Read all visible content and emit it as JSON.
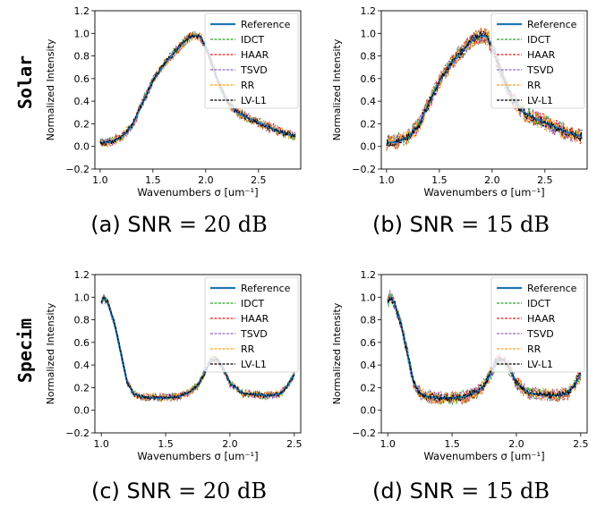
{
  "row_labels": [
    "Solar",
    "Specim"
  ],
  "captions": [
    {
      "prefix": "(a) SNR",
      "eq": "=",
      "value": "20 dB"
    },
    {
      "prefix": "(b) SNR",
      "eq": "=",
      "value": "15 dB"
    },
    {
      "prefix": "(c) SNR",
      "eq": "=",
      "value": "20 dB"
    },
    {
      "prefix": "(d) SNR",
      "eq": "=",
      "value": "15 dB"
    }
  ],
  "chart_data": [
    {
      "type": "line",
      "panel": "a",
      "dataset": "Solar",
      "noise": 0.045,
      "xlabel": "Wavenumbers σ [um⁻¹]",
      "ylabel": "Normalized Intensity",
      "xlim": [
        0.95,
        2.9
      ],
      "ylim": [
        -0.2,
        1.2
      ],
      "xticks": [
        "1.0",
        "1.5",
        "2.0",
        "2.5"
      ],
      "yticks": [
        "−0.2",
        "0.0",
        "0.2",
        "0.4",
        "0.6",
        "0.8",
        "1.0",
        "1.2"
      ],
      "legend": "upper-right",
      "reference_points": {
        "x": [
          1.0,
          1.1,
          1.2,
          1.3,
          1.4,
          1.5,
          1.6,
          1.7,
          1.8,
          1.85,
          1.9,
          1.95,
          2.0,
          2.1,
          2.2,
          2.3,
          2.4,
          2.5,
          2.6,
          2.7,
          2.8,
          2.85
        ],
        "y": [
          0.03,
          0.04,
          0.08,
          0.18,
          0.38,
          0.58,
          0.72,
          0.83,
          0.93,
          0.97,
          0.98,
          0.97,
          0.88,
          0.62,
          0.4,
          0.3,
          0.25,
          0.21,
          0.17,
          0.13,
          0.1,
          0.09
        ]
      },
      "series": [
        {
          "name": "Reference",
          "color": "#1f77b4",
          "style": "solid"
        },
        {
          "name": "IDCT",
          "color": "#2ca02c",
          "style": "dashed"
        },
        {
          "name": "HAAR",
          "color": "#d62728",
          "style": "dashed"
        },
        {
          "name": "TSVD",
          "color": "#9467bd",
          "style": "dashed"
        },
        {
          "name": "RR",
          "color": "#ff9f1c",
          "style": "dashed"
        },
        {
          "name": "LV-L1",
          "color": "#000000",
          "style": "dashed"
        }
      ]
    },
    {
      "type": "line",
      "panel": "b",
      "dataset": "Solar",
      "noise": 0.075,
      "xlabel": "Wavenumbers σ [um⁻¹]",
      "ylabel": "Normalized Intensity",
      "xlim": [
        0.95,
        2.9
      ],
      "ylim": [
        -0.2,
        1.2
      ],
      "xticks": [
        "1.0",
        "1.5",
        "2.0",
        "2.5"
      ],
      "yticks": [
        "−0.2",
        "0.0",
        "0.2",
        "0.4",
        "0.6",
        "0.8",
        "1.0",
        "1.2"
      ],
      "legend": "upper-right",
      "reference_points": {
        "x": [
          1.0,
          1.1,
          1.2,
          1.3,
          1.4,
          1.5,
          1.6,
          1.7,
          1.8,
          1.85,
          1.9,
          1.95,
          2.0,
          2.1,
          2.2,
          2.3,
          2.4,
          2.5,
          2.6,
          2.7,
          2.8,
          2.85
        ],
        "y": [
          0.03,
          0.04,
          0.08,
          0.18,
          0.38,
          0.58,
          0.72,
          0.83,
          0.93,
          0.97,
          0.98,
          0.97,
          0.88,
          0.62,
          0.4,
          0.3,
          0.25,
          0.21,
          0.17,
          0.13,
          0.1,
          0.09
        ]
      },
      "series": [
        {
          "name": "Reference",
          "color": "#1f77b4",
          "style": "solid"
        },
        {
          "name": "IDCT",
          "color": "#2ca02c",
          "style": "dashed"
        },
        {
          "name": "HAAR",
          "color": "#d62728",
          "style": "dashed"
        },
        {
          "name": "TSVD",
          "color": "#9467bd",
          "style": "dashed"
        },
        {
          "name": "RR",
          "color": "#ff9f1c",
          "style": "dashed"
        },
        {
          "name": "LV-L1",
          "color": "#000000",
          "style": "dashed"
        }
      ]
    },
    {
      "type": "line",
      "panel": "c",
      "dataset": "Specim",
      "noise": 0.035,
      "xlabel": "Wavenumbers σ [um⁻¹]",
      "ylabel": "Normalized Intensity",
      "xlim": [
        0.95,
        2.55
      ],
      "ylim": [
        -0.2,
        1.2
      ],
      "xticks": [
        "1.0",
        "1.5",
        "2.0",
        "2.5"
      ],
      "yticks": [
        "−0.2",
        "0.0",
        "0.2",
        "0.4",
        "0.6",
        "0.8",
        "1.0",
        "1.2"
      ],
      "legend": "upper-right",
      "reference_points": {
        "x": [
          1.0,
          1.02,
          1.05,
          1.1,
          1.15,
          1.2,
          1.25,
          1.3,
          1.4,
          1.5,
          1.6,
          1.7,
          1.75,
          1.8,
          1.85,
          1.9,
          1.95,
          2.0,
          2.1,
          2.2,
          2.3,
          2.4,
          2.45,
          2.5
        ],
        "y": [
          0.95,
          1.0,
          0.95,
          0.78,
          0.52,
          0.25,
          0.15,
          0.12,
          0.11,
          0.11,
          0.12,
          0.17,
          0.22,
          0.32,
          0.44,
          0.45,
          0.36,
          0.24,
          0.15,
          0.14,
          0.13,
          0.15,
          0.22,
          0.32
        ]
      },
      "series": [
        {
          "name": "Reference",
          "color": "#1f77b4",
          "style": "solid"
        },
        {
          "name": "IDCT",
          "color": "#2ca02c",
          "style": "dashed"
        },
        {
          "name": "HAAR",
          "color": "#d62728",
          "style": "dashed"
        },
        {
          "name": "TSVD",
          "color": "#9467bd",
          "style": "dashed"
        },
        {
          "name": "RR",
          "color": "#ff9f1c",
          "style": "dashed"
        },
        {
          "name": "LV-L1",
          "color": "#000000",
          "style": "dashed"
        }
      ]
    },
    {
      "type": "line",
      "panel": "d",
      "dataset": "Specim",
      "noise": 0.06,
      "xlabel": "Wavenumbers σ [um⁻¹]",
      "ylabel": "Normalized Intensity",
      "xlim": [
        0.95,
        2.55
      ],
      "ylim": [
        -0.2,
        1.2
      ],
      "xticks": [
        "1.0",
        "1.5",
        "2.0",
        "2.5"
      ],
      "yticks": [
        "−0.2",
        "0.0",
        "0.2",
        "0.4",
        "0.6",
        "0.8",
        "1.0",
        "1.2"
      ],
      "legend": "upper-right",
      "reference_points": {
        "x": [
          1.0,
          1.02,
          1.05,
          1.1,
          1.15,
          1.2,
          1.25,
          1.3,
          1.4,
          1.5,
          1.6,
          1.7,
          1.75,
          1.8,
          1.85,
          1.9,
          1.95,
          2.0,
          2.1,
          2.2,
          2.3,
          2.4,
          2.45,
          2.5
        ],
        "y": [
          0.95,
          1.0,
          0.95,
          0.78,
          0.52,
          0.25,
          0.15,
          0.12,
          0.11,
          0.11,
          0.12,
          0.17,
          0.22,
          0.32,
          0.44,
          0.45,
          0.36,
          0.24,
          0.15,
          0.14,
          0.13,
          0.15,
          0.22,
          0.32
        ]
      },
      "series": [
        {
          "name": "Reference",
          "color": "#1f77b4",
          "style": "solid"
        },
        {
          "name": "IDCT",
          "color": "#2ca02c",
          "style": "dashed"
        },
        {
          "name": "HAAR",
          "color": "#d62728",
          "style": "dashed"
        },
        {
          "name": "TSVD",
          "color": "#9467bd",
          "style": "dashed"
        },
        {
          "name": "RR",
          "color": "#ff9f1c",
          "style": "dashed"
        },
        {
          "name": "LV-L1",
          "color": "#000000",
          "style": "dashed"
        }
      ]
    }
  ]
}
